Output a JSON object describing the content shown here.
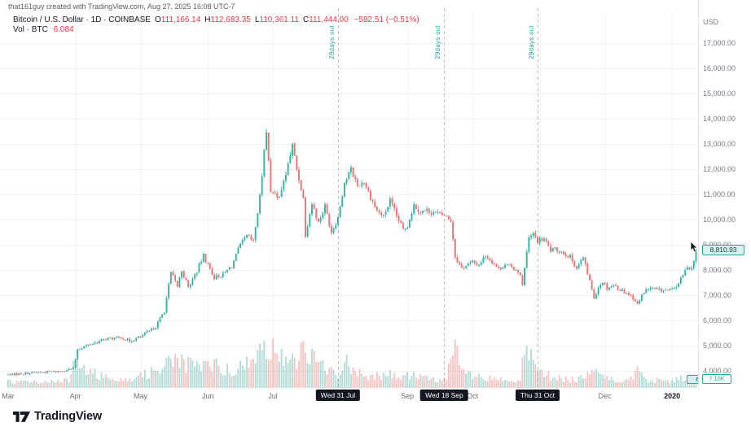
{
  "attribution": "that161guy created with TradingView.com, Aug 27, 2025 16:08 UTC-7",
  "legend": {
    "title": "Bitcoin / U.S. Dollar · 1D · COINBASE",
    "open_label": "O",
    "open": "111,166.14",
    "high_label": "H",
    "high": "112,683.35",
    "low_label": "L",
    "low": "110,361.11",
    "close_label": "C",
    "close": "111,444.00",
    "change": "−582.51 (−0.51%)",
    "volume_label": "Vol · BTC",
    "volume_value": "6.084"
  },
  "axis": {
    "currency": "USD",
    "price_badge": "8,810.93",
    "volume_plot_badge": "6.084",
    "volume_axis_badge": "7.10K"
  },
  "footer": {
    "brand": "TradingView"
  },
  "colors": {
    "up": "#33b3a2",
    "down": "#ee7070",
    "vol_up": "rgba(76,175,160,0.42)",
    "vol_down": "rgba(239,112,112,0.42)",
    "grid": "#f0f2f6",
    "axis_line": "#e0e3eb",
    "event_line": "rgba(128,144,152,0.55)",
    "event_label": "#26a69a",
    "badge_bg": "#d6f0ec",
    "accent_red": "#f23645",
    "black_box": "#131722"
  },
  "chart_data": {
    "type": "candlestick",
    "title": "Bitcoin / U.S. Dollar, 1D, COINBASE",
    "x_range": [
      "2019-03-01",
      "2020-01-12"
    ],
    "ylabel": "USD",
    "ylim": [
      3600,
      17400
    ],
    "grid": true,
    "y_ticks": [
      {
        "value": 17000,
        "label": "17,000.00"
      },
      {
        "value": 16000,
        "label": "16,000.00"
      },
      {
        "value": 15000,
        "label": "15,000.00"
      },
      {
        "value": 14000,
        "label": "14,000.00"
      },
      {
        "value": 13000,
        "label": "13,000.00"
      },
      {
        "value": 12000,
        "label": "12,000.00"
      },
      {
        "value": 11000,
        "label": "11,000.00"
      },
      {
        "value": 10000,
        "label": "10,000.00"
      },
      {
        "value": 9000,
        "label": "9,000.00"
      },
      {
        "value": 8000,
        "label": "8,000.00"
      },
      {
        "value": 7000,
        "label": "7,000.00"
      },
      {
        "value": 6000,
        "label": "6,000.00"
      },
      {
        "value": 5000,
        "label": "5,000.00"
      },
      {
        "value": 4000,
        "label": "4,000.00"
      }
    ],
    "x_months": [
      {
        "label": "Mar",
        "day": 0
      },
      {
        "label": "Apr",
        "day": 31
      },
      {
        "label": "May",
        "day": 61
      },
      {
        "label": "Jun",
        "day": 92
      },
      {
        "label": "Jul",
        "day": 122
      },
      {
        "label": "Sep",
        "day": 184
      },
      {
        "label": "Oct",
        "day": 214
      },
      {
        "label": "Dec",
        "day": 275
      },
      {
        "label": "2020",
        "day": 306,
        "bold": true
      }
    ],
    "month_grid_days": [
      31,
      61,
      92,
      122,
      153,
      184,
      214,
      245,
      275,
      306
    ],
    "event_lines": [
      {
        "label": "29days out",
        "date_label": "Wed 31 Jul",
        "day": 152
      },
      {
        "label": "29days out",
        "date_label": "Wed 18 Sep",
        "day": 201
      },
      {
        "label": "29days out",
        "date_label": "Thu 31 Oct",
        "day": 244
      }
    ],
    "days_total": 318,
    "price_anchors": [
      [
        0,
        3850
      ],
      [
        6,
        3890
      ],
      [
        12,
        3930
      ],
      [
        18,
        3955
      ],
      [
        24,
        3990
      ],
      [
        30,
        4090
      ],
      [
        32,
        4860
      ],
      [
        38,
        5060
      ],
      [
        45,
        5260
      ],
      [
        52,
        5320
      ],
      [
        56,
        5180
      ],
      [
        61,
        5350
      ],
      [
        68,
        5750
      ],
      [
        72,
        6380
      ],
      [
        75,
        7880
      ],
      [
        78,
        7350
      ],
      [
        80,
        7990
      ],
      [
        83,
        7300
      ],
      [
        87,
        7960
      ],
      [
        90,
        8560
      ],
      [
        95,
        7700
      ],
      [
        99,
        7820
      ],
      [
        103,
        8150
      ],
      [
        107,
        8990
      ],
      [
        110,
        9330
      ],
      [
        113,
        9120
      ],
      [
        116,
        10880
      ],
      [
        117,
        11780
      ],
      [
        118,
        12910
      ],
      [
        119,
        13400
      ],
      [
        120,
        12370
      ],
      [
        121,
        11180
      ],
      [
        124,
        10820
      ],
      [
        127,
        11450
      ],
      [
        130,
        12570
      ],
      [
        131,
        12940
      ],
      [
        133,
        11990
      ],
      [
        136,
        10850
      ],
      [
        137,
        9420
      ],
      [
        140,
        10650
      ],
      [
        143,
        9880
      ],
      [
        146,
        10530
      ],
      [
        149,
        9510
      ],
      [
        152,
        10090
      ],
      [
        155,
        11470
      ],
      [
        158,
        11980
      ],
      [
        161,
        11350
      ],
      [
        164,
        11520
      ],
      [
        167,
        10890
      ],
      [
        170,
        10350
      ],
      [
        173,
        10120
      ],
      [
        176,
        10750
      ],
      [
        179,
        10130
      ],
      [
        182,
        9590
      ],
      [
        184,
        9770
      ],
      [
        187,
        10580
      ],
      [
        190,
        10310
      ],
      [
        193,
        10360
      ],
      [
        196,
        10290
      ],
      [
        199,
        10180
      ],
      [
        201,
        10170
      ],
      [
        204,
        9970
      ],
      [
        206,
        8530
      ],
      [
        209,
        8060
      ],
      [
        212,
        8230
      ],
      [
        214,
        8310
      ],
      [
        217,
        8210
      ],
      [
        220,
        8590
      ],
      [
        223,
        8340
      ],
      [
        226,
        8040
      ],
      [
        229,
        8220
      ],
      [
        232,
        8100
      ],
      [
        235,
        7990
      ],
      [
        237,
        7470
      ],
      [
        239,
        8670
      ],
      [
        240,
        9250
      ],
      [
        242,
        9410
      ],
      [
        244,
        9150
      ],
      [
        247,
        9230
      ],
      [
        250,
        8770
      ],
      [
        253,
        8810
      ],
      [
        256,
        8690
      ],
      [
        259,
        8510
      ],
      [
        262,
        8090
      ],
      [
        265,
        8490
      ],
      [
        268,
        7550
      ],
      [
        270,
        6910
      ],
      [
        272,
        7320
      ],
      [
        274,
        7550
      ],
      [
        276,
        7290
      ],
      [
        279,
        7400
      ],
      [
        282,
        7220
      ],
      [
        285,
        7110
      ],
      [
        288,
        6900
      ],
      [
        290,
        6620
      ],
      [
        293,
        7150
      ],
      [
        296,
        7290
      ],
      [
        299,
        7200
      ],
      [
        302,
        7190
      ],
      [
        306,
        7190
      ],
      [
        308,
        7350
      ],
      [
        311,
        7770
      ],
      [
        313,
        8160
      ],
      [
        315,
        8050
      ],
      [
        317,
        8810
      ]
    ],
    "volume_anchors_kbtc": [
      [
        0,
        6
      ],
      [
        15,
        6
      ],
      [
        28,
        7
      ],
      [
        31,
        26
      ],
      [
        33,
        30
      ],
      [
        36,
        16
      ],
      [
        45,
        11
      ],
      [
        55,
        9
      ],
      [
        61,
        11
      ],
      [
        70,
        20
      ],
      [
        74,
        30
      ],
      [
        78,
        26
      ],
      [
        82,
        22
      ],
      [
        88,
        20
      ],
      [
        92,
        24
      ],
      [
        100,
        18
      ],
      [
        108,
        20
      ],
      [
        114,
        26
      ],
      [
        117,
        40
      ],
      [
        118,
        52
      ],
      [
        120,
        42
      ],
      [
        124,
        28
      ],
      [
        130,
        30
      ],
      [
        133,
        26
      ],
      [
        136,
        44
      ],
      [
        138,
        34
      ],
      [
        143,
        22
      ],
      [
        148,
        17
      ],
      [
        152,
        15
      ],
      [
        156,
        24
      ],
      [
        158,
        22
      ],
      [
        163,
        14
      ],
      [
        167,
        12
      ],
      [
        172,
        11
      ],
      [
        176,
        13
      ],
      [
        182,
        10
      ],
      [
        186,
        13
      ],
      [
        192,
        9
      ],
      [
        197,
        8
      ],
      [
        201,
        8
      ],
      [
        205,
        30
      ],
      [
        206,
        36
      ],
      [
        209,
        17
      ],
      [
        214,
        11
      ],
      [
        220,
        9
      ],
      [
        226,
        8
      ],
      [
        232,
        7
      ],
      [
        236,
        11
      ],
      [
        239,
        42
      ],
      [
        240,
        38
      ],
      [
        243,
        18
      ],
      [
        247,
        13
      ],
      [
        252,
        10
      ],
      [
        258,
        8
      ],
      [
        263,
        9
      ],
      [
        268,
        17
      ],
      [
        270,
        21
      ],
      [
        274,
        12
      ],
      [
        278,
        8
      ],
      [
        283,
        7
      ],
      [
        288,
        10
      ],
      [
        290,
        15
      ],
      [
        294,
        9
      ],
      [
        300,
        7
      ],
      [
        306,
        6
      ],
      [
        310,
        9
      ],
      [
        314,
        10
      ],
      [
        317,
        7
      ]
    ]
  }
}
